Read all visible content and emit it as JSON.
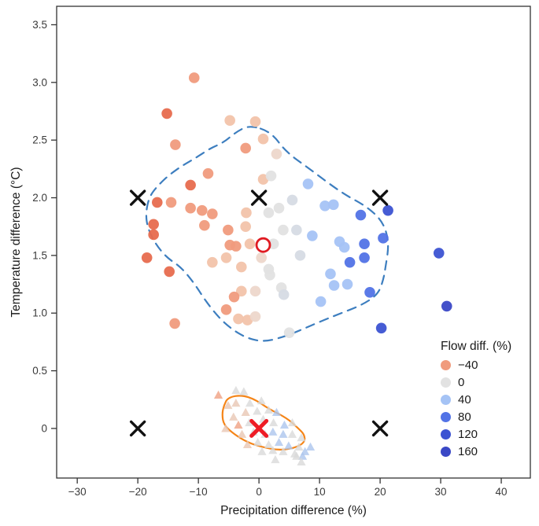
{
  "legend": {
    "title": "Flow diff. (%)",
    "entries": [
      {
        "label": "−40",
        "color": "#f09b7d"
      },
      {
        "label": "0",
        "color": "#e2e2e2"
      },
      {
        "label": "40",
        "color": "#a5c3f5"
      },
      {
        "label": "80",
        "color": "#5273e6"
      },
      {
        "label": "120",
        "color": "#3c53d2"
      },
      {
        "label": "160",
        "color": "#3a48c6"
      }
    ]
  },
  "chart_data": {
    "type": "scatter",
    "title": "",
    "xlabel": "Precipitation difference (%)",
    "ylabel": "Temperature difference (°C)",
    "xlim": [
      -33.4,
      44.8
    ],
    "ylim": [
      -0.43,
      3.66
    ],
    "grid": false,
    "legend_position": "lower right",
    "x_ticks": {
      "values": [
        -30,
        -20,
        -10,
        0,
        10,
        20,
        30,
        40
      ],
      "labels": [
        "−30",
        "−20",
        "−10",
        "0",
        "10",
        "20",
        "30",
        "40"
      ]
    },
    "y_ticks": {
      "values": [
        3.5,
        3.0,
        2.5,
        2.0,
        1.5,
        1.0,
        0.5,
        0
      ],
      "labels": [
        "3.5",
        "3.0",
        "2.5",
        "2.0",
        "1.5",
        "1.0",
        "0.5",
        "0"
      ]
    },
    "color_variable": "Flow diff. (%)",
    "circle_palette": [
      {
        "flow": -60,
        "color": "#e76c4e"
      },
      {
        "flow": -40,
        "color": "#f09b7d"
      },
      {
        "flow": -20,
        "color": "#f2c3aa"
      },
      {
        "flow": -8,
        "color": "#edd7cb"
      },
      {
        "flow": 0,
        "color": "#e2e2e2"
      },
      {
        "flow": 10,
        "color": "#d6dbe4"
      },
      {
        "flow": 40,
        "color": "#a5c3f5"
      },
      {
        "flow": 80,
        "color": "#5273e6"
      },
      {
        "flow": 120,
        "color": "#3c53d2"
      },
      {
        "flow": 160,
        "color": "#3a48c6"
      }
    ],
    "triangle_palette": [
      {
        "flow": -40,
        "color": "#f0a183"
      },
      {
        "flow": -20,
        "color": "#e8c7b4"
      },
      {
        "flow": 0,
        "color": "#d9d9d9"
      },
      {
        "flow": 40,
        "color": "#adc6ee"
      }
    ],
    "series": [
      {
        "name": "upper-cluster-circles",
        "marker": "circle",
        "points_xy_flow": [
          [
            -10.7,
            3.04,
            -40
          ],
          [
            -15.2,
            2.73,
            -60
          ],
          [
            -13.8,
            2.46,
            -40
          ],
          [
            -4.8,
            2.67,
            -20
          ],
          [
            -0.6,
            2.66,
            -20
          ],
          [
            -2.2,
            2.43,
            -40
          ],
          [
            0.7,
            2.51,
            -20
          ],
          [
            2.9,
            2.38,
            -8
          ],
          [
            -8.4,
            2.21,
            -40
          ],
          [
            -11.3,
            2.11,
            -60
          ],
          [
            0.7,
            2.16,
            -20
          ],
          [
            2.0,
            2.19,
            0
          ],
          [
            -16.8,
            1.96,
            -60
          ],
          [
            -14.5,
            1.96,
            -40
          ],
          [
            -11.3,
            1.91,
            -40
          ],
          [
            -9.4,
            1.89,
            -40
          ],
          [
            -7.7,
            1.86,
            -40
          ],
          [
            -2.1,
            1.87,
            -20
          ],
          [
            1.6,
            1.87,
            0
          ],
          [
            3.3,
            1.91,
            0
          ],
          [
            -17.4,
            1.77,
            -60
          ],
          [
            -17.4,
            1.68,
            -60
          ],
          [
            -9.0,
            1.76,
            -40
          ],
          [
            -5.1,
            1.72,
            -40
          ],
          [
            -2.2,
            1.75,
            -20
          ],
          [
            -18.5,
            1.48,
            -60
          ],
          [
            -14.8,
            1.36,
            -60
          ],
          [
            -7.7,
            1.44,
            -20
          ],
          [
            -5.4,
            1.48,
            -20
          ],
          [
            -4.8,
            1.59,
            -40
          ],
          [
            -3.8,
            1.58,
            -40
          ],
          [
            -1.5,
            1.6,
            -20
          ],
          [
            2.4,
            1.6,
            0
          ],
          [
            0.4,
            1.48,
            -8
          ],
          [
            -2.9,
            1.4,
            -20
          ],
          [
            1.6,
            1.38,
            0
          ],
          [
            1.8,
            1.33,
            0
          ],
          [
            -2.9,
            1.19,
            -20
          ],
          [
            -0.6,
            1.19,
            -8
          ],
          [
            -4.1,
            1.14,
            -40
          ],
          [
            -5.4,
            1.03,
            -40
          ],
          [
            -3.4,
            0.95,
            -20
          ],
          [
            -1.9,
            0.94,
            -20
          ],
          [
            -0.6,
            0.97,
            -8
          ],
          [
            -13.9,
            0.91,
            -40
          ],
          [
            3.7,
            1.22,
            0
          ],
          [
            4.1,
            1.16,
            10
          ],
          [
            5.0,
            0.83,
            0
          ],
          [
            4.0,
            1.72,
            0
          ],
          [
            6.2,
            1.72,
            10
          ],
          [
            5.5,
            1.98,
            10
          ],
          [
            8.1,
            2.12,
            40
          ],
          [
            10.9,
            1.93,
            40
          ],
          [
            12.3,
            1.94,
            40
          ],
          [
            16.8,
            1.85,
            80
          ],
          [
            21.3,
            1.89,
            120
          ],
          [
            8.8,
            1.67,
            40
          ],
          [
            13.3,
            1.62,
            40
          ],
          [
            14.1,
            1.57,
            40
          ],
          [
            17.4,
            1.6,
            80
          ],
          [
            20.5,
            1.65,
            80
          ],
          [
            17.4,
            1.48,
            80
          ],
          [
            15.0,
            1.44,
            80
          ],
          [
            6.8,
            1.5,
            10
          ],
          [
            29.7,
            1.52,
            120
          ],
          [
            11.8,
            1.34,
            40
          ],
          [
            12.4,
            1.24,
            40
          ],
          [
            14.6,
            1.25,
            40
          ],
          [
            18.3,
            1.18,
            80
          ],
          [
            10.2,
            1.1,
            40
          ],
          [
            20.2,
            0.87,
            120
          ],
          [
            31.0,
            1.06,
            160
          ]
        ]
      },
      {
        "name": "lower-cluster-triangles",
        "marker": "triangle",
        "points_xy_flow": [
          [
            -6.7,
            0.29,
            -40
          ],
          [
            -3.8,
            0.33,
            0
          ],
          [
            -2.5,
            0.32,
            0
          ],
          [
            -5.1,
            0.2,
            -20
          ],
          [
            -3.8,
            0.22,
            -20
          ],
          [
            -1.5,
            0.22,
            0
          ],
          [
            0.4,
            0.24,
            0
          ],
          [
            1.6,
            0.16,
            0
          ],
          [
            2.9,
            0.14,
            40
          ],
          [
            -0.3,
            0.15,
            0
          ],
          [
            -2.2,
            0.14,
            -20
          ],
          [
            -4.2,
            0.1,
            -20
          ],
          [
            -5.5,
            0.0,
            -20
          ],
          [
            -3.4,
            0.03,
            -40
          ],
          [
            -1.6,
            0.05,
            0
          ],
          [
            0.7,
            0.08,
            0
          ],
          [
            2.4,
            0.05,
            0
          ],
          [
            4.2,
            0.03,
            40
          ],
          [
            5.5,
            0.05,
            0
          ],
          [
            -2.8,
            -0.05,
            -20
          ],
          [
            -0.9,
            -0.03,
            0
          ],
          [
            1.0,
            -0.05,
            0
          ],
          [
            2.3,
            -0.03,
            40
          ],
          [
            4.0,
            -0.05,
            40
          ],
          [
            5.5,
            -0.05,
            0
          ],
          [
            7.0,
            -0.08,
            0
          ],
          [
            -1.9,
            -0.14,
            -20
          ],
          [
            -0.2,
            -0.12,
            0
          ],
          [
            1.6,
            -0.14,
            0
          ],
          [
            3.3,
            -0.12,
            40
          ],
          [
            4.9,
            -0.15,
            40
          ],
          [
            6.6,
            -0.16,
            0
          ],
          [
            0.5,
            -0.2,
            0
          ],
          [
            2.3,
            -0.19,
            0
          ],
          [
            4.0,
            -0.2,
            0
          ],
          [
            5.9,
            -0.22,
            0
          ],
          [
            2.7,
            -0.27,
            0
          ],
          [
            7.2,
            -0.24,
            40
          ],
          [
            7.6,
            -0.2,
            40
          ],
          [
            6.2,
            -0.24,
            0
          ],
          [
            7.0,
            -0.29,
            0
          ],
          [
            8.5,
            -0.16,
            40
          ]
        ]
      }
    ],
    "reference_markers": {
      "black_x_points": [
        [
          -20,
          2
        ],
        [
          0,
          2
        ],
        [
          20,
          2
        ],
        [
          -20,
          0
        ],
        [
          20,
          0
        ]
      ],
      "black_x_color": "#111111",
      "red_x_point": [
        0,
        0
      ],
      "red_x_color": "#ee1c25",
      "red_open_circle_point": [
        0.7,
        1.59
      ],
      "red_open_circle_color": "#e01b22"
    },
    "contours": [
      {
        "name": "dashed-blue-contour",
        "style": "dashed",
        "color": "#3d7ebf",
        "points": [
          [
            -1.5,
            2.63
          ],
          [
            2.0,
            2.57
          ],
          [
            4.4,
            2.4
          ],
          [
            8.1,
            2.26
          ],
          [
            13.7,
            2.04
          ],
          [
            17.6,
            1.93
          ],
          [
            20.0,
            1.82
          ],
          [
            21.1,
            1.7
          ],
          [
            21.4,
            1.57
          ],
          [
            20.9,
            1.4
          ],
          [
            20.5,
            1.28
          ],
          [
            19.6,
            1.16
          ],
          [
            17.0,
            1.07
          ],
          [
            13.1,
            0.99
          ],
          [
            9.8,
            0.92
          ],
          [
            7.2,
            0.86
          ],
          [
            4.4,
            0.8
          ],
          [
            1.0,
            0.75
          ],
          [
            -1.9,
            0.78
          ],
          [
            -4.5,
            0.86
          ],
          [
            -6.8,
            0.97
          ],
          [
            -9.0,
            1.12
          ],
          [
            -10.7,
            1.26
          ],
          [
            -12.9,
            1.4
          ],
          [
            -15.2,
            1.48
          ],
          [
            -17.1,
            1.6
          ],
          [
            -18.4,
            1.74
          ],
          [
            -18.7,
            1.87
          ],
          [
            -18.1,
            2.01
          ],
          [
            -16.8,
            2.1
          ],
          [
            -14.8,
            2.2
          ],
          [
            -12.6,
            2.28
          ],
          [
            -10.3,
            2.35
          ],
          [
            -8.0,
            2.43
          ],
          [
            -5.8,
            2.48
          ],
          [
            -3.8,
            2.57
          ]
        ]
      },
      {
        "name": "solid-orange-contour",
        "style": "solid",
        "color": "#f58518",
        "points": [
          [
            -5.1,
            0.27
          ],
          [
            -2.8,
            0.29
          ],
          [
            -0.6,
            0.25
          ],
          [
            1.6,
            0.17
          ],
          [
            4.6,
            0.09
          ],
          [
            6.3,
            0.01
          ],
          [
            7.5,
            -0.05
          ],
          [
            7.6,
            -0.12
          ],
          [
            5.9,
            -0.17
          ],
          [
            3.3,
            -0.19
          ],
          [
            0.4,
            -0.16
          ],
          [
            -1.9,
            -0.12
          ],
          [
            -4.1,
            -0.05
          ],
          [
            -5.8,
            0.03
          ],
          [
            -6.1,
            0.12
          ],
          [
            -5.8,
            0.2
          ]
        ]
      }
    ]
  }
}
